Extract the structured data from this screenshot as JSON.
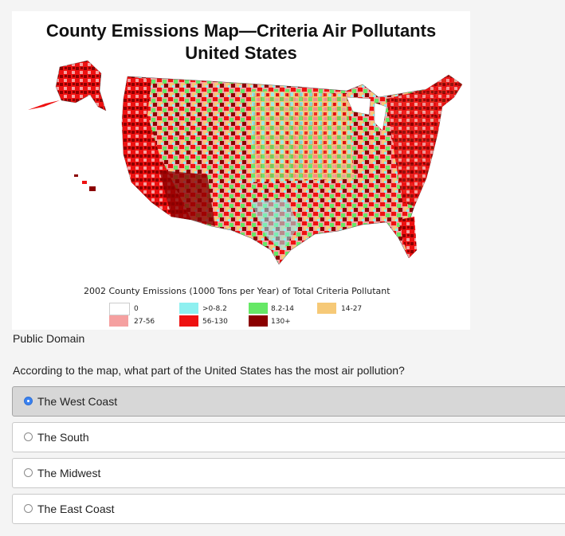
{
  "map": {
    "title_line1": "County Emissions Map—Criteria Air Pollutants",
    "title_line2": "United States",
    "legend_title": "2002 County Emissions (1000 Tons per Year) of Total Criteria Pollutant",
    "legend": [
      {
        "label": "0",
        "color": "#ffffff"
      },
      {
        "label": ">0-8.2",
        "color": "#8ef0f0"
      },
      {
        "label": "8.2-14",
        "color": "#66e866"
      },
      {
        "label": "14-27",
        "color": "#f6c977"
      },
      {
        "label": "27-56",
        "color": "#f5a0a0"
      },
      {
        "label": "56-130",
        "color": "#ee1111"
      },
      {
        "label": "130+",
        "color": "#8b0000"
      }
    ]
  },
  "caption": "Public Domain",
  "question": "According to the map, what part of the United States has the most air pollution?",
  "options": [
    {
      "label": "The West Coast",
      "selected": true
    },
    {
      "label": "The South",
      "selected": false
    },
    {
      "label": "The Midwest",
      "selected": false
    },
    {
      "label": "The East Coast",
      "selected": false
    }
  ],
  "colors": {
    "selected_bg": "#d7d7d7",
    "radio_selected": "#3b82f0"
  }
}
